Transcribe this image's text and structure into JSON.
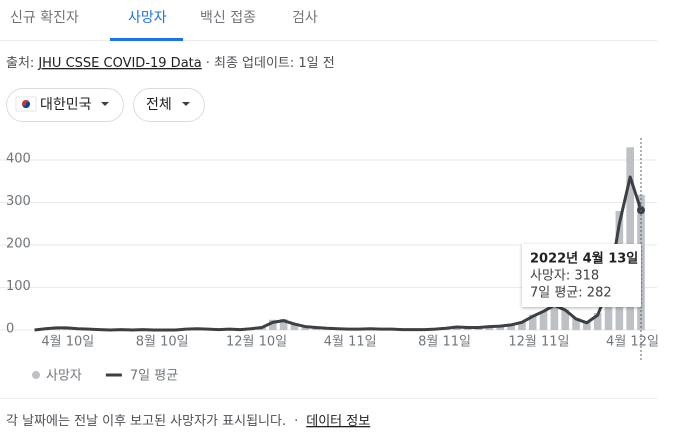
{
  "tabs": [
    "신규 확진자",
    "사망자",
    "백신 접종",
    "검사"
  ],
  "source": {
    "label": "출처:",
    "link": "JHU CSSE COVID-19 Data",
    "updated": "· 최종 업데이트: 1일 전"
  },
  "filters": [
    "대한민국",
    "전체"
  ],
  "chart_data": {
    "type": "combo",
    "x": [
      -43,
      -29,
      -15,
      -1,
      13,
      27,
      41,
      55,
      69,
      83,
      97,
      111,
      125,
      139,
      153,
      167,
      181,
      195,
      209,
      223,
      237,
      251,
      265,
      279,
      293,
      307,
      321,
      335,
      349,
      363,
      377,
      391,
      405,
      419,
      433,
      447,
      461,
      475,
      489,
      503,
      517,
      531,
      545,
      559,
      573,
      587,
      601,
      615,
      629,
      643,
      657,
      671,
      685,
      699,
      713,
      727,
      741
    ],
    "xlim": [
      -45,
      741
    ],
    "xticks": [
      {
        "value": 0,
        "label": "4월 10일"
      },
      {
        "value": 122,
        "label": "8월 10일"
      },
      {
        "value": 244,
        "label": "12월 10일"
      },
      {
        "value": 365,
        "label": "4월 11일"
      },
      {
        "value": 487,
        "label": "8월 11일"
      },
      {
        "value": 609,
        "label": "12월 11일"
      },
      {
        "value": 730,
        "label": "4월 12일"
      }
    ],
    "ylim": [
      0,
      450
    ],
    "yticks": [
      0,
      100,
      200,
      300,
      400
    ],
    "grid": true,
    "series": [
      {
        "name": "사망자",
        "kind": "bar",
        "color": "#bdc1c6",
        "values": [
          0,
          4,
          6,
          5,
          3,
          2,
          1,
          0,
          1,
          0,
          1,
          0,
          1,
          0,
          2,
          4,
          2,
          1,
          2,
          2,
          3,
          8,
          24,
          26,
          15,
          9,
          6,
          4,
          3,
          2,
          3,
          3,
          2,
          2,
          1,
          2,
          1,
          3,
          4,
          8,
          7,
          6,
          8,
          9,
          12,
          20,
          36,
          45,
          62,
          48,
          28,
          18,
          40,
          120,
          280,
          430,
          318
        ]
      },
      {
        "name": "7일 평균",
        "kind": "line",
        "color": "#3c4043",
        "values": [
          0,
          3,
          5,
          5,
          3,
          2,
          1,
          0,
          1,
          0,
          1,
          0,
          0,
          0,
          2,
          3,
          2,
          1,
          2,
          1,
          3,
          6,
          18,
          22,
          14,
          8,
          6,
          4,
          3,
          2,
          2,
          3,
          2,
          2,
          1,
          1,
          1,
          2,
          4,
          7,
          6,
          6,
          8,
          9,
          12,
          18,
          32,
          44,
          58,
          47,
          26,
          17,
          35,
          100,
          250,
          360,
          282
        ]
      }
    ],
    "tooltip": {
      "date": "2022년 4월 13일",
      "lines": [
        "사망자: 318",
        "7일 평균: 282"
      ]
    }
  },
  "footer": {
    "note": "각 날짜에는 전날 이후 보고된 사망자가 표시됩니다.",
    "separator": "·",
    "link": "데이터 정보"
  }
}
